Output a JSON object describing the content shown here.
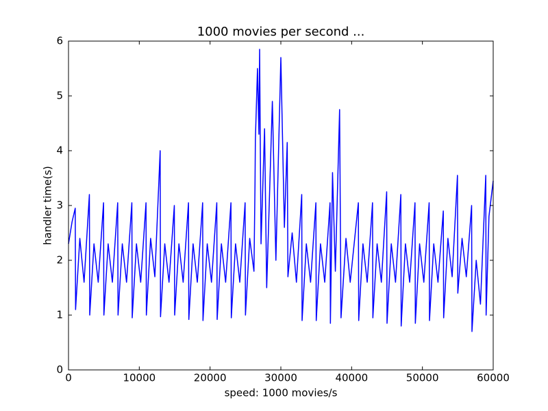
{
  "chart_data": {
    "type": "line",
    "title": "1000 movies per second ...",
    "x_label": "speed: 1000 movies/s",
    "y_label": "handler time(s)",
    "x": [
      0,
      500,
      950,
      1000,
      1600,
      2200,
      2950,
      3000,
      3600,
      4200,
      4950,
      5000,
      5600,
      6200,
      6950,
      7000,
      7600,
      8200,
      8950,
      9000,
      9600,
      10200,
      10950,
      11000,
      11600,
      12200,
      12950,
      13000,
      13600,
      14200,
      14950,
      15000,
      15600,
      16200,
      16950,
      17000,
      17600,
      18200,
      18950,
      19000,
      19600,
      20200,
      20950,
      21000,
      21600,
      22200,
      22950,
      23000,
      23600,
      24200,
      24950,
      25000,
      25600,
      26200,
      26350,
      26400,
      26700,
      26900,
      27000,
      27200,
      27700,
      28000,
      28800,
      29300,
      30000,
      30500,
      30900,
      31000,
      31600,
      32200,
      32950,
      33000,
      33600,
      34200,
      34950,
      35000,
      35600,
      36200,
      36950,
      37000,
      37300,
      37700,
      38300,
      38500,
      39200,
      39800,
      40950,
      41000,
      41600,
      42200,
      42950,
      43000,
      43600,
      44200,
      44950,
      45000,
      45600,
      46200,
      46950,
      47000,
      47600,
      48200,
      48950,
      49000,
      49600,
      50200,
      50950,
      51000,
      51600,
      52200,
      52950,
      53000,
      53600,
      54200,
      54950,
      55000,
      55600,
      56200,
      56950,
      57000,
      57600,
      58200,
      58950,
      59000,
      59400,
      60000
    ],
    "series": [
      {
        "color": "#0000ff",
        "values": [
          2.3,
          2.7,
          2.95,
          1.1,
          2.4,
          1.6,
          3.2,
          1.0,
          2.3,
          1.6,
          3.05,
          1.0,
          2.3,
          1.6,
          3.05,
          1.0,
          2.3,
          1.6,
          3.05,
          0.95,
          2.3,
          1.6,
          3.05,
          1.0,
          2.4,
          1.7,
          4.0,
          0.97,
          2.3,
          1.6,
          3.0,
          1.0,
          2.3,
          1.6,
          3.05,
          0.92,
          2.3,
          1.6,
          3.05,
          0.9,
          2.3,
          1.6,
          3.05,
          0.92,
          2.3,
          1.6,
          3.05,
          0.95,
          2.3,
          1.6,
          3.05,
          1.0,
          2.4,
          1.8,
          3.4,
          4.2,
          5.5,
          4.3,
          5.85,
          2.3,
          4.4,
          1.5,
          4.9,
          2.0,
          5.7,
          2.6,
          4.15,
          1.7,
          2.5,
          1.6,
          3.2,
          0.9,
          2.3,
          1.6,
          3.05,
          0.9,
          2.3,
          1.6,
          3.05,
          0.85,
          3.6,
          1.8,
          4.75,
          0.95,
          2.4,
          1.6,
          3.05,
          0.9,
          2.3,
          1.6,
          3.05,
          0.95,
          2.3,
          1.6,
          3.25,
          0.85,
          2.3,
          1.6,
          3.2,
          0.8,
          2.3,
          1.6,
          3.05,
          0.85,
          2.3,
          1.6,
          3.05,
          0.9,
          2.3,
          1.6,
          2.9,
          0.95,
          2.4,
          1.7,
          3.55,
          1.4,
          2.4,
          1.7,
          3.0,
          0.7,
          2.0,
          1.2,
          3.55,
          1.0,
          2.8,
          3.45
        ]
      }
    ],
    "xlim": [
      0,
      60000
    ],
    "xticks": [
      0,
      10000,
      20000,
      30000,
      40000,
      50000,
      60000
    ],
    "ylim": [
      0,
      6
    ],
    "yticks": [
      0,
      1,
      2,
      3,
      4,
      5,
      6
    ]
  }
}
